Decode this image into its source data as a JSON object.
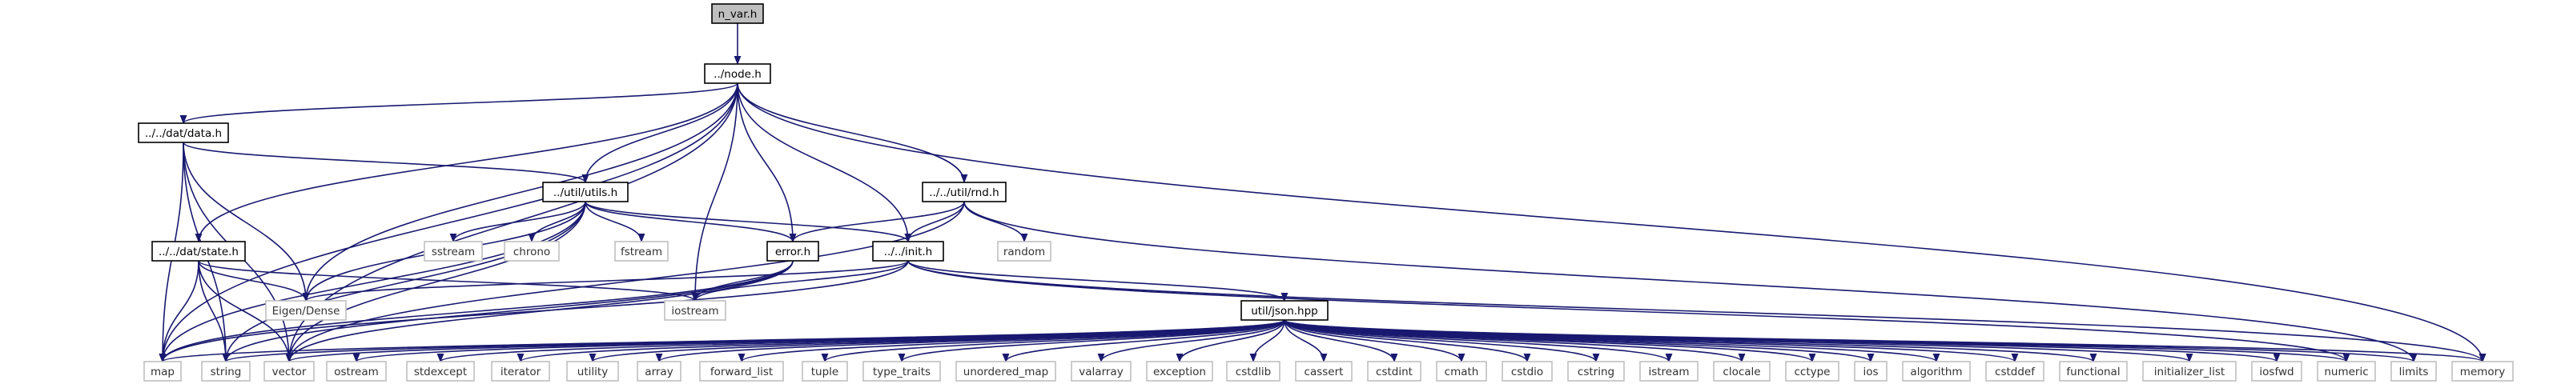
{
  "graph": {
    "root": "n_var.h",
    "local_headers": {
      "node": "../node.h",
      "data": "../../dat/data.h",
      "utils": "../util/utils.h",
      "rnd": "../../util/rnd.h",
      "state": "../../dat/state.h",
      "error": "error.h",
      "init": "../../init.h",
      "json": "util/json.hpp"
    },
    "system_headers": {
      "map": "map",
      "string": "string",
      "vector": "vector",
      "ostream": "ostream",
      "stdexcept": "stdexcept",
      "iterator": "iterator",
      "utility": "utility",
      "array": "array",
      "forward_list": "forward_list",
      "tuple": "tuple",
      "type_traits": "type_traits",
      "unordered_map": "unordered_map",
      "valarray": "valarray",
      "exception": "exception",
      "cstdlib": "cstdlib",
      "cassert": "cassert",
      "cstdint": "cstdint",
      "cmath": "cmath",
      "cstdio": "cstdio",
      "cstring": "cstring",
      "istream": "istream",
      "clocale": "clocale",
      "cctype": "cctype",
      "ios": "ios",
      "algorithm": "algorithm",
      "cstddef": "cstddef",
      "functional": "functional",
      "initializer_list": "initializer_list",
      "iosfwd": "iosfwd",
      "numeric": "numeric",
      "limits": "limits",
      "memory": "memory",
      "eigen": "Eigen/Dense",
      "iostream": "iostream",
      "sstream": "sstream",
      "chrono": "chrono",
      "fstream": "fstream",
      "random": "random"
    },
    "colors": {
      "edge": "#191970",
      "root_fill": "#bfbfbf",
      "local_border": "#000000",
      "system_border": "#bfbfbf"
    }
  }
}
